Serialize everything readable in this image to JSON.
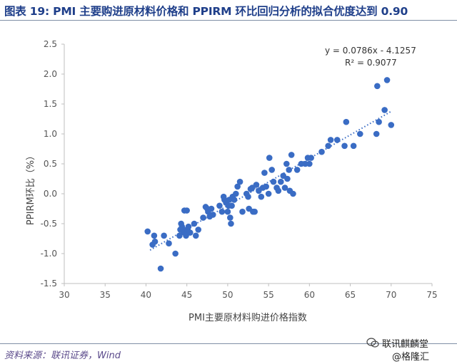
{
  "figure": {
    "title": "图表 19: PMI 主要购进原材料价格和 PPIRM 环比回归分析的拟合优度达到 0.90",
    "source": "资料来源：联讯证券，Wind",
    "watermark_line1": "联讯麒麟堂",
    "watermark_line2": "@格隆汇"
  },
  "chart_data": {
    "type": "scatter",
    "xlabel": "PMI主要原材料购进价格指数",
    "ylabel": "PPIRM环比（%）",
    "xlim": [
      30,
      75
    ],
    "ylim": [
      -1.5,
      2.5
    ],
    "xticks": [
      30,
      35,
      40,
      45,
      50,
      55,
      60,
      65,
      70,
      75
    ],
    "yticks": [
      -1.5,
      -1.0,
      -0.5,
      0.0,
      0.5,
      1.0,
      1.5,
      2.0,
      2.5
    ],
    "xtick_labels": [
      "30",
      "35",
      "40",
      "45",
      "50",
      "55",
      "60",
      "65",
      "70",
      "75"
    ],
    "ytick_labels": [
      "-1.5",
      "-1.0",
      "-0.5",
      "0.0",
      "0.5",
      "1.0",
      "1.5",
      "2.0",
      "2.5"
    ],
    "point_color": "#3a6cc4",
    "trendline": {
      "slope": 0.0786,
      "intercept": -4.1257,
      "x_range": [
        40.5,
        70
      ],
      "equation": "y = 0.0786x - 4.1257",
      "r2": "R² = 0.9077"
    },
    "points": [
      [
        40.2,
        -0.63
      ],
      [
        40.8,
        -0.85
      ],
      [
        41.0,
        -0.7
      ],
      [
        41.1,
        -0.8
      ],
      [
        41.8,
        -1.25
      ],
      [
        42.2,
        -0.7
      ],
      [
        42.8,
        -0.83
      ],
      [
        43.6,
        -1.0
      ],
      [
        44.1,
        -0.7
      ],
      [
        44.2,
        -0.6
      ],
      [
        44.3,
        -0.5
      ],
      [
        44.4,
        -0.55
      ],
      [
        44.5,
        -0.62
      ],
      [
        44.6,
        -0.6
      ],
      [
        44.7,
        -0.65
      ],
      [
        44.7,
        -0.28
      ],
      [
        44.9,
        -0.7
      ],
      [
        45.0,
        -0.28
      ],
      [
        45.1,
        -0.6
      ],
      [
        45.2,
        -0.55
      ],
      [
        45.4,
        -0.65
      ],
      [
        45.9,
        -0.5
      ],
      [
        46.1,
        -0.7
      ],
      [
        46.4,
        -0.6
      ],
      [
        47.0,
        -0.4
      ],
      [
        47.3,
        -0.22
      ],
      [
        47.5,
        -0.25
      ],
      [
        47.6,
        -0.3
      ],
      [
        47.8,
        -0.38
      ],
      [
        48.0,
        -0.25
      ],
      [
        48.2,
        -0.35
      ],
      [
        49.0,
        -0.2
      ],
      [
        49.3,
        -0.3
      ],
      [
        49.5,
        -0.05
      ],
      [
        49.6,
        -0.1
      ],
      [
        49.8,
        -0.15
      ],
      [
        50.0,
        -0.3
      ],
      [
        50.1,
        -0.2
      ],
      [
        50.2,
        -0.1
      ],
      [
        50.3,
        -0.4
      ],
      [
        50.4,
        -0.5
      ],
      [
        50.5,
        -0.2
      ],
      [
        50.6,
        -0.05
      ],
      [
        50.8,
        -0.1
      ],
      [
        51.0,
        0.0
      ],
      [
        51.2,
        0.12
      ],
      [
        51.5,
        0.2
      ],
      [
        51.8,
        -0.3
      ],
      [
        52.3,
        0.0
      ],
      [
        52.5,
        -0.05
      ],
      [
        52.6,
        -0.25
      ],
      [
        52.8,
        0.08
      ],
      [
        53.0,
        0.1
      ],
      [
        53.1,
        -0.3
      ],
      [
        53.3,
        -0.3
      ],
      [
        53.5,
        0.15
      ],
      [
        53.8,
        0.05
      ],
      [
        54.1,
        -0.05
      ],
      [
        54.3,
        0.1
      ],
      [
        54.5,
        0.35
      ],
      [
        54.7,
        0.12
      ],
      [
        55.0,
        0.0
      ],
      [
        55.1,
        0.6
      ],
      [
        55.4,
        0.4
      ],
      [
        55.6,
        0.2
      ],
      [
        56.0,
        0.1
      ],
      [
        56.2,
        0.05
      ],
      [
        56.5,
        0.2
      ],
      [
        56.8,
        0.3
      ],
      [
        57.0,
        0.1
      ],
      [
        57.2,
        0.5
      ],
      [
        57.3,
        0.25
      ],
      [
        57.5,
        0.4
      ],
      [
        57.6,
        0.05
      ],
      [
        57.8,
        0.65
      ],
      [
        58.0,
        0.0
      ],
      [
        58.5,
        0.4
      ],
      [
        59.0,
        0.5
      ],
      [
        59.5,
        0.5
      ],
      [
        59.8,
        0.6
      ],
      [
        60.0,
        0.5
      ],
      [
        60.2,
        0.6
      ],
      [
        61.5,
        0.7
      ],
      [
        62.3,
        0.8
      ],
      [
        62.6,
        0.9
      ],
      [
        63.4,
        0.9
      ],
      [
        64.3,
        0.8
      ],
      [
        64.5,
        1.2
      ],
      [
        65.4,
        0.8
      ],
      [
        66.2,
        1.0
      ],
      [
        68.2,
        1.0
      ],
      [
        68.3,
        1.8
      ],
      [
        68.5,
        1.2
      ],
      [
        69.2,
        1.4
      ],
      [
        69.5,
        1.9
      ],
      [
        70.0,
        1.15
      ]
    ]
  }
}
